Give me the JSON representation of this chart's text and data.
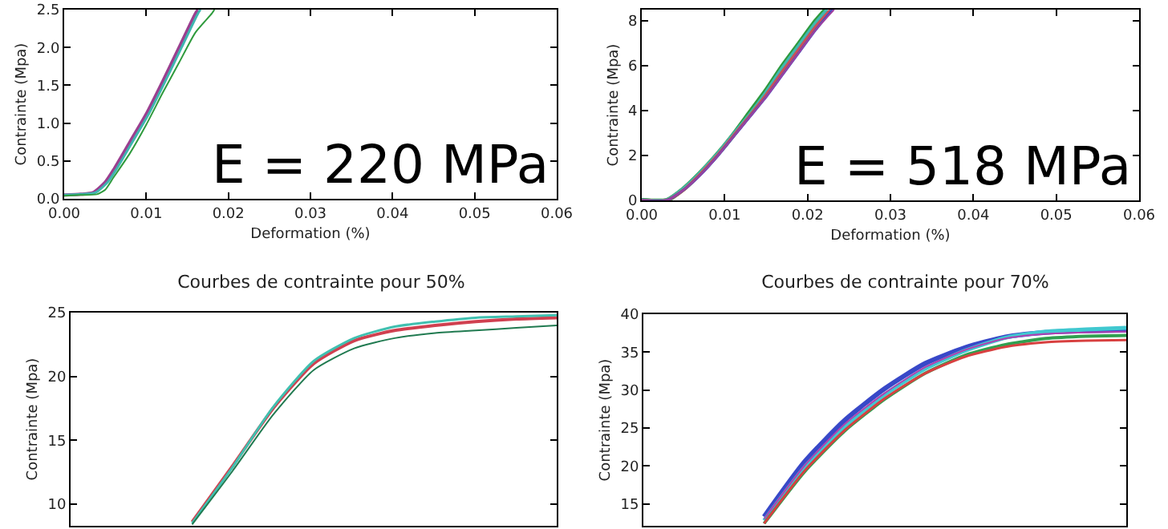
{
  "chart_data": [
    {
      "type": "line",
      "ylabel": "Contrainte (Mpa)",
      "xlabel": "Deformation (%)",
      "xlim": [
        0,
        0.06
      ],
      "xticks": [
        {
          "value": 0,
          "label": "0.00"
        },
        {
          "value": 0.01,
          "label": "0.01"
        },
        {
          "value": 0.02,
          "label": "0.02"
        },
        {
          "value": 0.03,
          "label": "0.03"
        },
        {
          "value": 0.04,
          "label": "0.04"
        },
        {
          "value": 0.05,
          "label": "0.05"
        },
        {
          "value": 0.06,
          "label": "0.06"
        }
      ],
      "ylim": [
        0,
        2.5
      ],
      "yticks": [
        {
          "value": 0,
          "label": "0.0"
        },
        {
          "value": 0.5,
          "label": "0.5"
        },
        {
          "value": 1,
          "label": "1.0"
        },
        {
          "value": 1.5,
          "label": "1.5"
        },
        {
          "value": 2,
          "label": "2.0"
        },
        {
          "value": 2.5,
          "label": "2.5"
        }
      ],
      "grid": false,
      "annotations": [
        "E = 220 MPa"
      ],
      "series": [
        {
          "color": "#9b3f8f",
          "x": [
            0,
            0.002,
            0.0035,
            0.005,
            0.006,
            0.008,
            0.01,
            0.012,
            0.014,
            0.016,
            0.0163
          ],
          "values": [
            0.05,
            0.06,
            0.08,
            0.22,
            0.38,
            0.75,
            1.12,
            1.55,
            2.0,
            2.45,
            2.5
          ]
        },
        {
          "color": "#3fb5b0",
          "x": [
            0,
            0.002,
            0.0038,
            0.0053,
            0.0063,
            0.0083,
            0.0103,
            0.0123,
            0.0143,
            0.0163,
            0.0166
          ],
          "values": [
            0.05,
            0.06,
            0.08,
            0.22,
            0.38,
            0.75,
            1.12,
            1.55,
            2.0,
            2.45,
            2.5
          ]
        },
        {
          "color": "#2e9a3c",
          "x": [
            0,
            0.002,
            0.004,
            0.005,
            0.006,
            0.008,
            0.01,
            0.012,
            0.014,
            0.016,
            0.018,
            0.0183
          ],
          "values": [
            0.04,
            0.05,
            0.06,
            0.12,
            0.28,
            0.6,
            0.98,
            1.4,
            1.8,
            2.2,
            2.45,
            2.5
          ]
        }
      ]
    },
    {
      "type": "line",
      "ylabel": "Contrainte (Mpa)",
      "xlabel": "Deformation (%)",
      "xlim": [
        0,
        0.06
      ],
      "xticks": [
        {
          "value": 0,
          "label": "0.00"
        },
        {
          "value": 0.01,
          "label": "0.01"
        },
        {
          "value": 0.02,
          "label": "0.02"
        },
        {
          "value": 0.03,
          "label": "0.03"
        },
        {
          "value": 0.04,
          "label": "0.04"
        },
        {
          "value": 0.05,
          "label": "0.05"
        },
        {
          "value": 0.06,
          "label": "0.06"
        }
      ],
      "ylim": [
        0,
        8.5
      ],
      "yticks": [
        0,
        2,
        4,
        6,
        8
      ],
      "grid": false,
      "annotations": [
        "E = 518 MPa"
      ],
      "series": [
        {
          "color": "#2e9a3c",
          "x": [
            0,
            0.003,
            0.005,
            0.007,
            0.009,
            0.011,
            0.013,
            0.015,
            0.017,
            0.019,
            0.021,
            0.0222
          ],
          "values": [
            0,
            0,
            0.5,
            1.2,
            2.0,
            2.9,
            3.9,
            4.9,
            6.0,
            7.0,
            8.0,
            8.5
          ]
        },
        {
          "color": "#40b8b0",
          "x": [
            0,
            0.003,
            0.005,
            0.007,
            0.009,
            0.011,
            0.013,
            0.015,
            0.017,
            0.019,
            0.021,
            0.0224
          ],
          "values": [
            0,
            0,
            0.5,
            1.2,
            2.0,
            2.9,
            3.8,
            4.8,
            5.9,
            6.9,
            7.9,
            8.5
          ]
        },
        {
          "color": "#c8505a",
          "x": [
            0,
            0.003,
            0.005,
            0.007,
            0.009,
            0.011,
            0.013,
            0.015,
            0.017,
            0.019,
            0.021,
            0.0228
          ],
          "values": [
            0,
            0,
            0.45,
            1.15,
            1.95,
            2.85,
            3.75,
            4.7,
            5.75,
            6.75,
            7.75,
            8.5
          ]
        },
        {
          "color": "#4050c0",
          "x": [
            0,
            0.003,
            0.005,
            0.007,
            0.009,
            0.011,
            0.013,
            0.015,
            0.017,
            0.019,
            0.021,
            0.023
          ],
          "values": [
            0,
            0,
            0.45,
            1.1,
            1.9,
            2.8,
            3.7,
            4.6,
            5.6,
            6.6,
            7.6,
            8.5
          ]
        },
        {
          "color": "#a040a0",
          "x": [
            0,
            0.003,
            0.005,
            0.007,
            0.009,
            0.011,
            0.013,
            0.015,
            0.017,
            0.019,
            0.021,
            0.0232
          ],
          "values": [
            0,
            0,
            0.45,
            1.1,
            1.9,
            2.8,
            3.7,
            4.6,
            5.6,
            6.6,
            7.6,
            8.5
          ]
        }
      ]
    },
    {
      "type": "line",
      "title": "Courbes de contrainte pour 50%",
      "ylabel": "Contrainte (Mpa)",
      "categories": [
        null,
        null,
        null,
        null,
        null,
        null,
        null,
        null,
        null,
        null,
        null,
        null,
        null
      ],
      "ylim": [
        8.3,
        25
      ],
      "yticks": [
        10,
        15,
        20,
        25
      ],
      "grid": false,
      "tick_labels": "y",
      "series": [
        {
          "color": "#d04050",
          "values": [
            null,
            null,
            null,
            8.6,
            13,
            17.5,
            21.0,
            22.8,
            23.6,
            24.0,
            24.3,
            24.5,
            24.6
          ]
        },
        {
          "color": "#40c0b0",
          "values": [
            null,
            null,
            null,
            8.5,
            12.9,
            17.6,
            21.2,
            23.0,
            23.9,
            24.3,
            24.6,
            24.7,
            24.8
          ]
        },
        {
          "color": "#207a50",
          "values": [
            null,
            null,
            null,
            8.4,
            12.6,
            17.0,
            20.5,
            22.2,
            23.0,
            23.4,
            23.6,
            23.8,
            24.0
          ]
        }
      ]
    },
    {
      "type": "line",
      "title": "Courbes de contrainte pour 70%",
      "ylabel": "Contrainte (Mpa)",
      "categories": [
        null,
        null,
        null,
        null,
        null,
        null,
        null,
        null,
        null,
        null,
        null,
        null,
        null
      ],
      "ylim": [
        12.1,
        40
      ],
      "yticks": [
        15,
        20,
        25,
        30,
        35,
        40
      ],
      "grid": false,
      "tick_labels": "y",
      "series": [
        {
          "color": "#3848c8",
          "values": [
            null,
            null,
            null,
            13.3,
            20.5,
            26.0,
            30.2,
            33.5,
            35.6,
            37.0,
            37.6,
            37.8,
            37.9
          ]
        },
        {
          "color": "#40c8d0",
          "values": [
            null,
            null,
            null,
            12.8,
            19.8,
            25.2,
            29.4,
            32.8,
            35.2,
            36.9,
            37.7,
            38.0,
            38.2
          ]
        },
        {
          "color": "#30a050",
          "values": [
            null,
            null,
            null,
            12.4,
            19.2,
            24.6,
            28.8,
            32.2,
            34.6,
            36.0,
            36.8,
            37.1,
            37.2
          ]
        },
        {
          "color": "#d84040",
          "values": [
            null,
            null,
            null,
            12.4,
            19.3,
            24.7,
            28.9,
            32.2,
            34.4,
            35.7,
            36.3,
            36.5,
            36.6
          ]
        },
        {
          "color": "#b040b0",
          "values": [
            null,
            null,
            null,
            13.0,
            20.0,
            25.5,
            29.6,
            33.0,
            35.3,
            36.8,
            37.4,
            37.6,
            37.7
          ]
        }
      ]
    }
  ]
}
